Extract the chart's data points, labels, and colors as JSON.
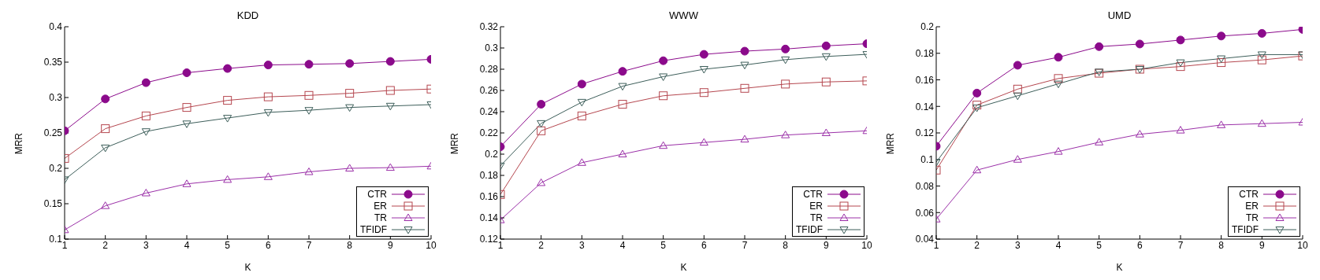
{
  "chart_data": [
    {
      "type": "line",
      "title": "KDD",
      "xlabel": "K",
      "ylabel": "MRR",
      "x": [
        1,
        2,
        3,
        4,
        5,
        6,
        7,
        8,
        9,
        10
      ],
      "xlim": [
        1,
        10
      ],
      "xticks": [
        1,
        2,
        3,
        4,
        5,
        6,
        7,
        8,
        9,
        10
      ],
      "ylim": [
        0.1,
        0.4
      ],
      "yticks": [
        0.1,
        0.15,
        0.2,
        0.25,
        0.3,
        0.35,
        0.4
      ],
      "grid": false,
      "legend": "bottom right",
      "series": [
        {
          "name": "CTR",
          "color": "#8b0a8b",
          "marker": "circle",
          "values": [
            0.253,
            0.298,
            0.321,
            0.335,
            0.341,
            0.346,
            0.347,
            0.348,
            0.351,
            0.354
          ]
        },
        {
          "name": "ER",
          "color": "#b5474f",
          "marker": "square",
          "values": [
            0.214,
            0.256,
            0.274,
            0.286,
            0.296,
            0.301,
            0.303,
            0.306,
            0.31,
            0.312
          ]
        },
        {
          "name": "TR",
          "color": "#9b30a8",
          "marker": "triangle",
          "values": [
            0.113,
            0.147,
            0.165,
            0.178,
            0.184,
            0.188,
            0.195,
            0.2,
            0.201,
            0.203
          ]
        },
        {
          "name": "TFIDF",
          "color": "#3d5e5a",
          "marker": "triangle-down",
          "values": [
            0.184,
            0.229,
            0.252,
            0.263,
            0.271,
            0.279,
            0.282,
            0.286,
            0.288,
            0.29
          ]
        }
      ]
    },
    {
      "type": "line",
      "title": "WWW",
      "xlabel": "K",
      "ylabel": "MRR",
      "x": [
        1,
        2,
        3,
        4,
        5,
        6,
        7,
        8,
        9,
        10
      ],
      "xlim": [
        1,
        10
      ],
      "xticks": [
        1,
        2,
        3,
        4,
        5,
        6,
        7,
        8,
        9,
        10
      ],
      "ylim": [
        0.12,
        0.32
      ],
      "yticks": [
        0.12,
        0.14,
        0.16,
        0.18,
        0.2,
        0.22,
        0.24,
        0.26,
        0.28,
        0.3,
        0.32
      ],
      "grid": false,
      "legend": "bottom right",
      "series": [
        {
          "name": "CTR",
          "color": "#8b0a8b",
          "marker": "circle",
          "values": [
            0.207,
            0.247,
            0.266,
            0.278,
            0.288,
            0.294,
            0.297,
            0.299,
            0.302,
            0.304
          ]
        },
        {
          "name": "ER",
          "color": "#b5474f",
          "marker": "square",
          "values": [
            0.162,
            0.222,
            0.236,
            0.247,
            0.255,
            0.258,
            0.262,
            0.266,
            0.268,
            0.269
          ]
        },
        {
          "name": "TR",
          "color": "#9b30a8",
          "marker": "triangle",
          "values": [
            0.138,
            0.173,
            0.192,
            0.2,
            0.208,
            0.211,
            0.214,
            0.218,
            0.22,
            0.222
          ]
        },
        {
          "name": "TFIDF",
          "color": "#3d5e5a",
          "marker": "triangle-down",
          "values": [
            0.189,
            0.229,
            0.249,
            0.264,
            0.273,
            0.28,
            0.284,
            0.289,
            0.292,
            0.294
          ]
        }
      ]
    },
    {
      "type": "line",
      "title": "UMD",
      "xlabel": "K",
      "ylabel": "MRR",
      "x": [
        1,
        2,
        3,
        4,
        5,
        6,
        7,
        8,
        9,
        10
      ],
      "xlim": [
        1,
        10
      ],
      "xticks": [
        1,
        2,
        3,
        4,
        5,
        6,
        7,
        8,
        9,
        10
      ],
      "ylim": [
        0.04,
        0.2
      ],
      "yticks": [
        0.04,
        0.06,
        0.08,
        0.1,
        0.12,
        0.14,
        0.16,
        0.18,
        0.2
      ],
      "grid": false,
      "legend": "bottom right",
      "series": [
        {
          "name": "CTR",
          "color": "#8b0a8b",
          "marker": "circle",
          "values": [
            0.11,
            0.15,
            0.171,
            0.177,
            0.185,
            0.187,
            0.19,
            0.193,
            0.195,
            0.198
          ]
        },
        {
          "name": "ER",
          "color": "#b5474f",
          "marker": "square",
          "values": [
            0.092,
            0.141,
            0.153,
            0.161,
            0.165,
            0.168,
            0.17,
            0.173,
            0.175,
            0.178
          ]
        },
        {
          "name": "TR",
          "color": "#9b30a8",
          "marker": "triangle",
          "values": [
            0.055,
            0.092,
            0.1,
            0.106,
            0.113,
            0.119,
            0.122,
            0.126,
            0.127,
            0.128
          ]
        },
        {
          "name": "TFIDF",
          "color": "#3d5e5a",
          "marker": "triangle-down",
          "values": [
            0.098,
            0.139,
            0.148,
            0.157,
            0.166,
            0.168,
            0.173,
            0.176,
            0.179,
            0.179
          ]
        }
      ]
    }
  ]
}
